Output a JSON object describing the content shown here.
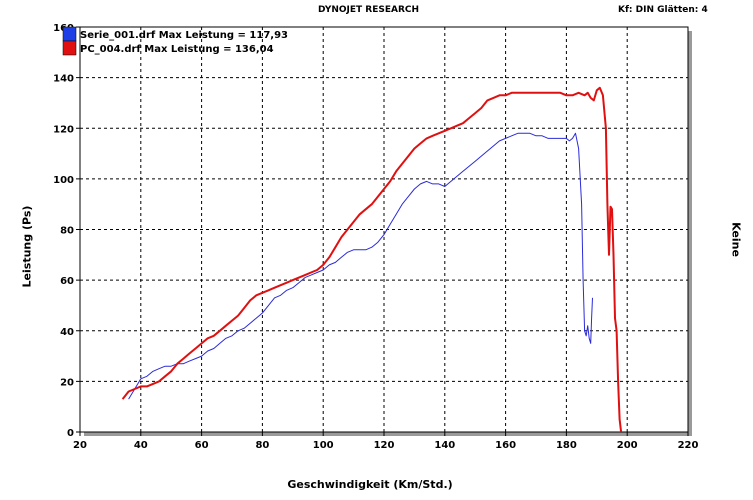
{
  "header": {
    "title": "DYNOJET RESEARCH",
    "right": "Kf: DIN  Glätten: 4"
  },
  "right_axis_label": "Keine",
  "chart_data": {
    "type": "line",
    "xlabel": "Geschwindigkeit (Km/Std.)",
    "ylabel": "Leistung (Ps)",
    "xlim": [
      20,
      220
    ],
    "ylim": [
      0,
      160
    ],
    "x_ticks": [
      20,
      40,
      60,
      80,
      100,
      120,
      140,
      160,
      180,
      200,
      220
    ],
    "y_ticks": [
      0,
      20,
      40,
      60,
      80,
      100,
      120,
      140,
      160
    ],
    "grid": true,
    "legend_position": "top-left",
    "series": [
      {
        "name": "Serie_001.drf Max Leistung = 117,93",
        "color": "#2b2bd9",
        "swatch_color": "#1f3fe6",
        "x": [
          36,
          38,
          40,
          42,
          44,
          46,
          48,
          50,
          52,
          54,
          56,
          58,
          60,
          62,
          64,
          66,
          68,
          70,
          72,
          74,
          76,
          78,
          80,
          82,
          84,
          86,
          88,
          90,
          92,
          94,
          96,
          98,
          100,
          102,
          104,
          106,
          108,
          110,
          112,
          114,
          116,
          118,
          120,
          122,
          124,
          126,
          128,
          130,
          132,
          134,
          136,
          138,
          140,
          142,
          144,
          146,
          148,
          150,
          152,
          154,
          156,
          158,
          160,
          162,
          164,
          166,
          168,
          170,
          172,
          174,
          176,
          178,
          180,
          181,
          182,
          183,
          184,
          185,
          185.5,
          186,
          186.5,
          187,
          187.5,
          188,
          188.3,
          188.6
        ],
        "y": [
          13,
          17,
          21,
          22,
          24,
          25,
          26,
          26,
          27,
          27,
          28,
          29,
          30,
          32,
          33,
          35,
          37,
          38,
          40,
          41,
          43,
          45,
          47,
          50,
          53,
          54,
          56,
          57,
          59,
          61,
          62,
          63,
          64,
          66,
          67,
          69,
          71,
          72,
          72,
          72,
          73,
          75,
          78,
          82,
          86,
          90,
          93,
          96,
          98,
          99,
          98,
          98,
          97,
          99,
          101,
          103,
          105,
          107,
          109,
          111,
          113,
          115,
          116,
          117,
          118,
          118,
          118,
          117,
          117,
          116,
          116,
          116,
          116,
          115,
          116,
          118,
          112,
          90,
          60,
          40,
          38,
          42,
          37,
          35,
          45,
          53
        ]
      },
      {
        "name": "PC_004.drf Max Leistung = 136,04",
        "color": "#e01010",
        "swatch_color": "#e01010",
        "x": [
          34,
          36,
          38,
          40,
          42,
          44,
          46,
          48,
          50,
          52,
          54,
          56,
          58,
          60,
          62,
          64,
          66,
          68,
          70,
          72,
          74,
          76,
          78,
          80,
          82,
          84,
          86,
          88,
          90,
          92,
          94,
          96,
          98,
          100,
          102,
          104,
          106,
          108,
          110,
          112,
          114,
          116,
          118,
          120,
          122,
          124,
          126,
          128,
          130,
          132,
          134,
          136,
          138,
          140,
          142,
          144,
          146,
          148,
          150,
          152,
          154,
          156,
          158,
          160,
          162,
          164,
          166,
          168,
          170,
          172,
          174,
          176,
          178,
          180,
          182,
          184,
          186,
          187,
          188,
          189,
          190,
          191,
          192,
          193,
          193.5,
          194,
          194.5,
          195,
          195.5,
          196,
          196.5,
          197,
          197.5,
          198
        ],
        "y": [
          13,
          16,
          17,
          18,
          18,
          19,
          20,
          22,
          24,
          27,
          29,
          31,
          33,
          35,
          37,
          38,
          40,
          42,
          44,
          46,
          49,
          52,
          54,
          55,
          56,
          57,
          58,
          59,
          60,
          61,
          62,
          63,
          64,
          66,
          69,
          73,
          77,
          80,
          83,
          86,
          88,
          90,
          93,
          96,
          99,
          103,
          106,
          109,
          112,
          114,
          116,
          117,
          118,
          119,
          120,
          121,
          122,
          124,
          126,
          128,
          131,
          132,
          133,
          133,
          134,
          134,
          134,
          134,
          134,
          134,
          134,
          134,
          134,
          133,
          133,
          134,
          133,
          134,
          132,
          131,
          135,
          136,
          133,
          120,
          90,
          70,
          89,
          88,
          70,
          45,
          40,
          20,
          5,
          0
        ]
      }
    ]
  }
}
